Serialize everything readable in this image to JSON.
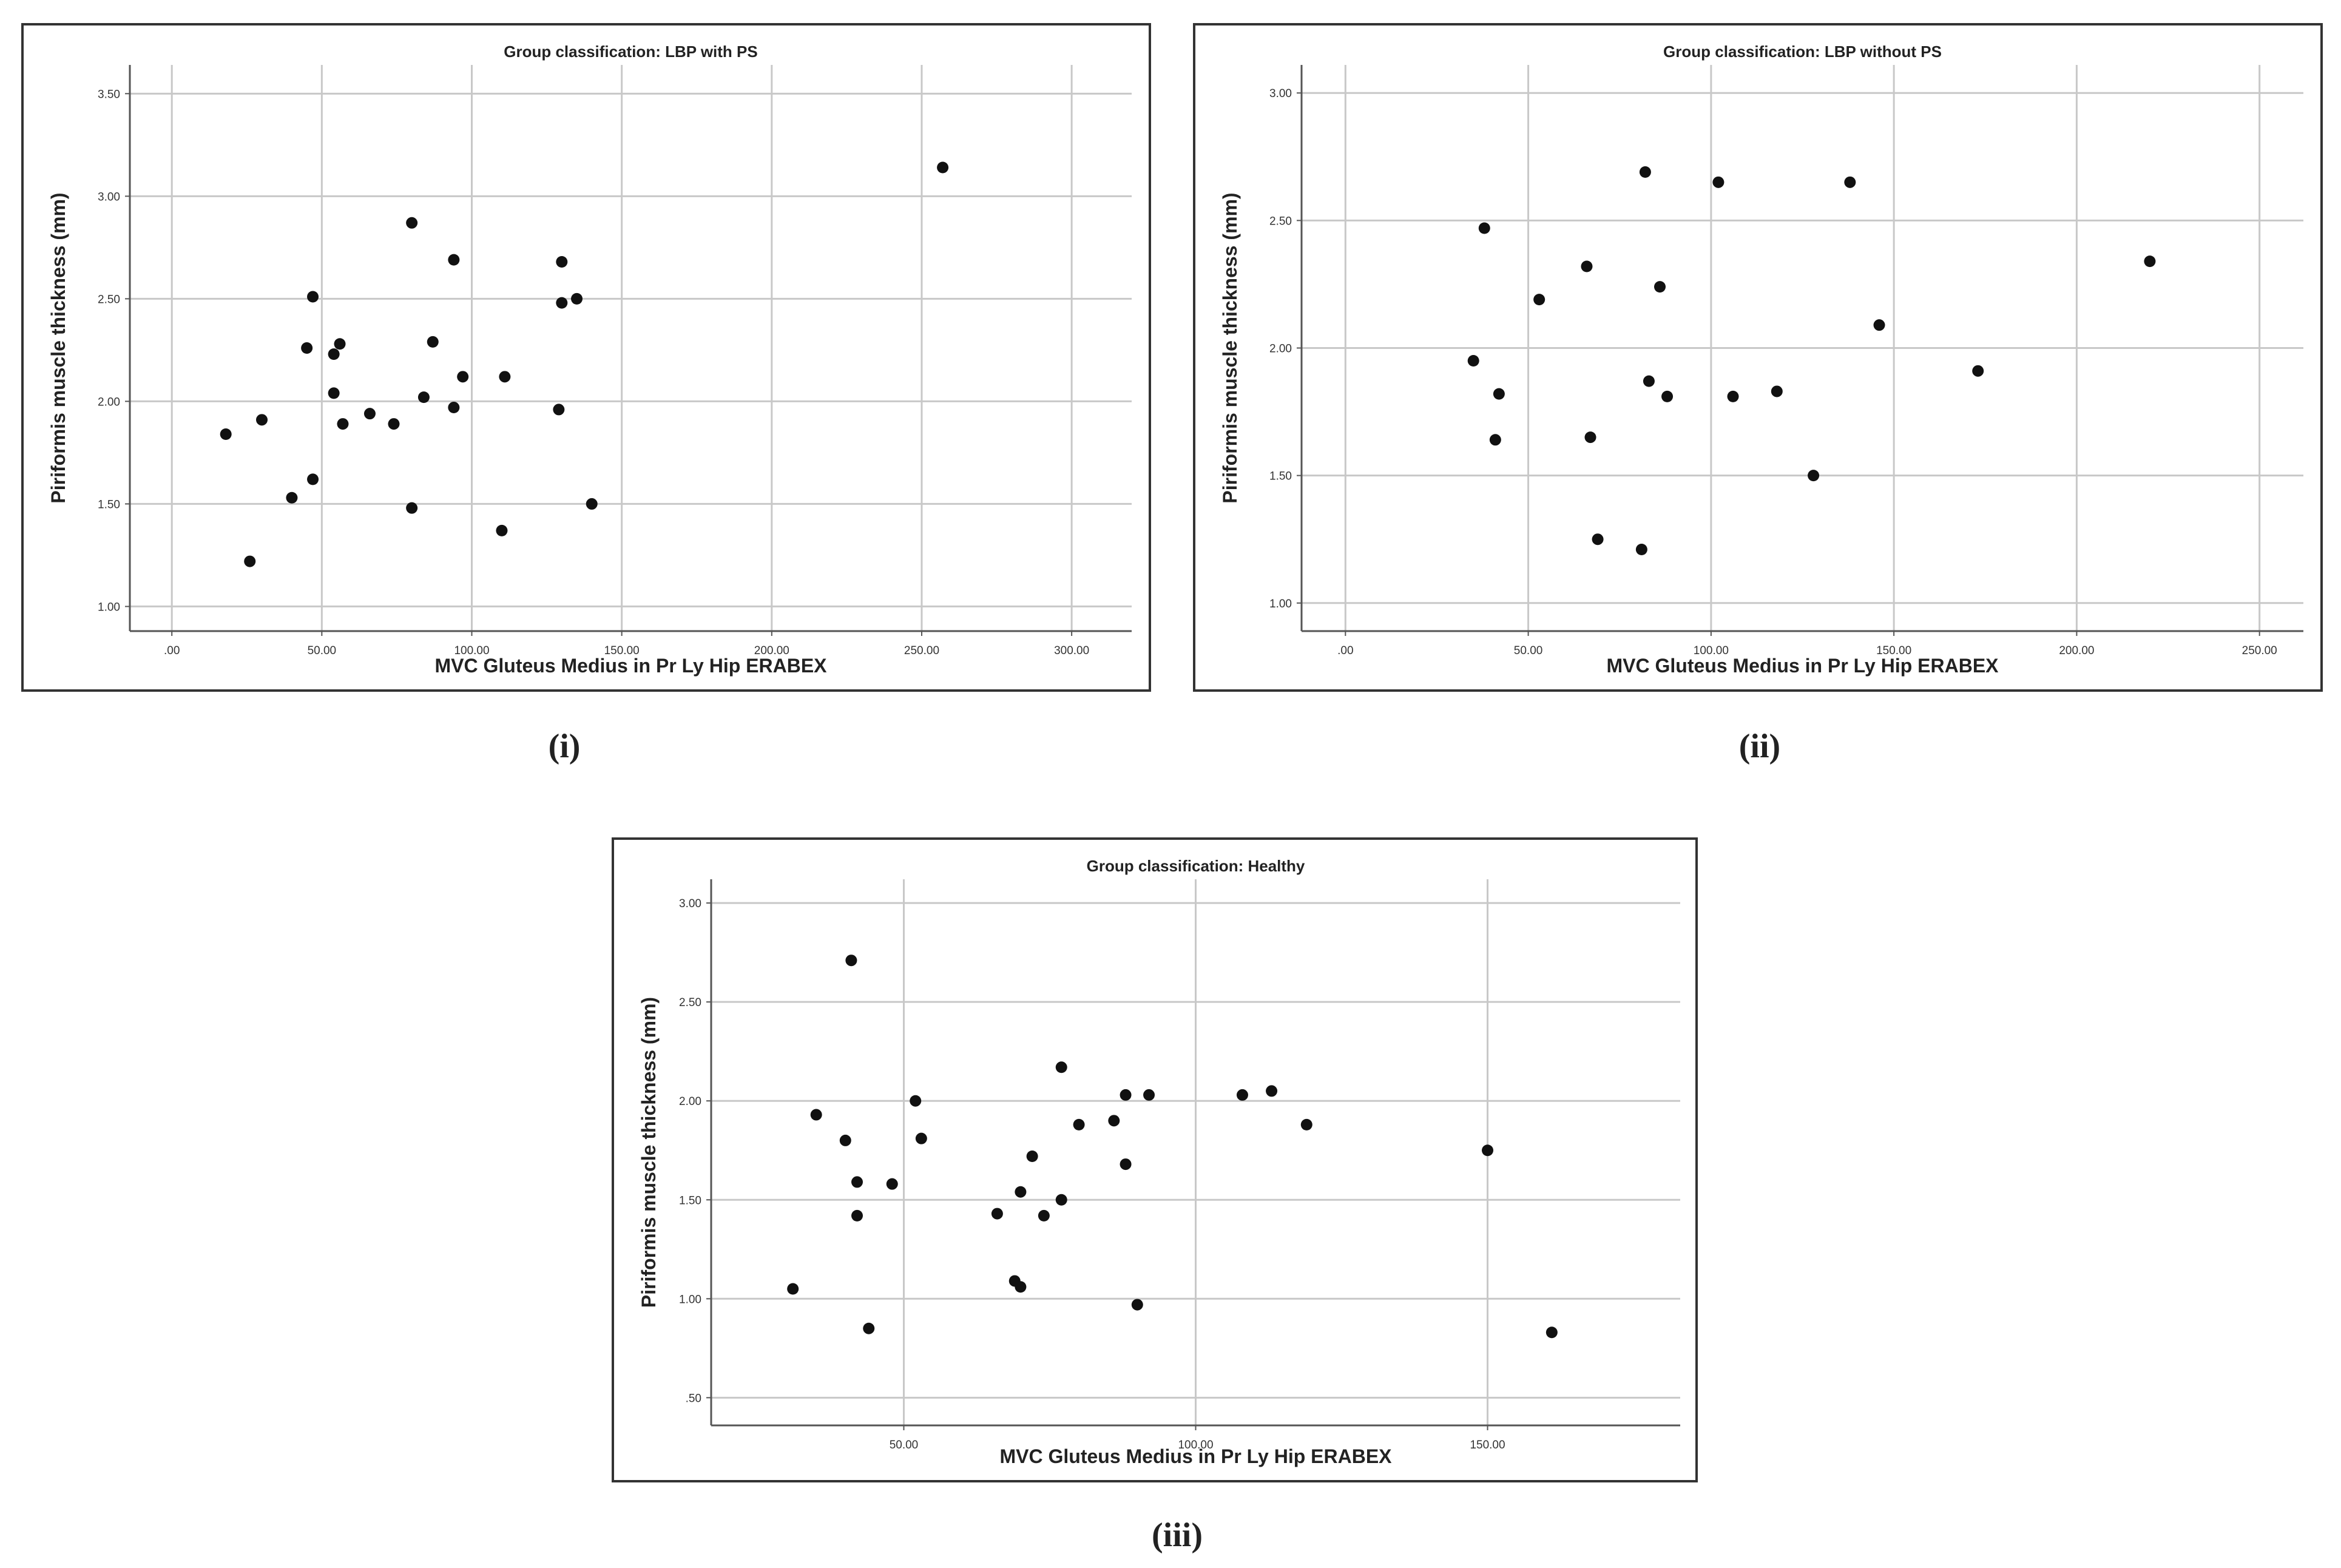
{
  "chart_data": [
    {
      "type": "scatter",
      "title": "Group classification: LBP with PS",
      "xlabel": "MVC Gluteus Medius in Pr Ly Hip ERABEX",
      "ylabel": "Piriformis muscle thickness (mm)",
      "xlim": [
        -14,
        320
      ],
      "ylim": [
        0.88,
        3.64
      ],
      "xticks": [
        0,
        50,
        100,
        150,
        200,
        250,
        300
      ],
      "xtick_labels": [
        ".00",
        "50.00",
        "100.00",
        "150.00",
        "200.00",
        "250.00",
        "300.00"
      ],
      "yticks": [
        1.0,
        1.5,
        2.0,
        2.5,
        3.0,
        3.5
      ],
      "ytick_labels": [
        "1.00",
        "1.50",
        "2.00",
        "2.50",
        "3.00",
        "3.50"
      ],
      "grid": true,
      "caption": "(i)",
      "points": [
        {
          "x": 18,
          "y": 1.84
        },
        {
          "x": 26,
          "y": 1.22
        },
        {
          "x": 30,
          "y": 1.91
        },
        {
          "x": 40,
          "y": 1.53
        },
        {
          "x": 45,
          "y": 2.26
        },
        {
          "x": 47,
          "y": 1.62
        },
        {
          "x": 47,
          "y": 2.51
        },
        {
          "x": 54,
          "y": 2.04
        },
        {
          "x": 54,
          "y": 2.23
        },
        {
          "x": 56,
          "y": 2.28
        },
        {
          "x": 57,
          "y": 1.89
        },
        {
          "x": 66,
          "y": 1.94
        },
        {
          "x": 74,
          "y": 1.89
        },
        {
          "x": 80,
          "y": 1.48
        },
        {
          "x": 80,
          "y": 2.87
        },
        {
          "x": 84,
          "y": 2.02
        },
        {
          "x": 87,
          "y": 2.29
        },
        {
          "x": 94,
          "y": 2.69
        },
        {
          "x": 94,
          "y": 1.97
        },
        {
          "x": 97,
          "y": 2.12
        },
        {
          "x": 110,
          "y": 1.37
        },
        {
          "x": 111,
          "y": 2.12
        },
        {
          "x": 129,
          "y": 1.96
        },
        {
          "x": 130,
          "y": 2.68
        },
        {
          "x": 130,
          "y": 2.48
        },
        {
          "x": 135,
          "y": 2.5
        },
        {
          "x": 140,
          "y": 1.5
        },
        {
          "x": 257,
          "y": 3.14
        }
      ]
    },
    {
      "type": "scatter",
      "title": "Group classification: LBP without PS",
      "xlabel": "MVC Gluteus Medius in Pr Ly Hip ERABEX",
      "ylabel": "Piriformis muscle thickness (mm)",
      "xlim": [
        -12,
        262
      ],
      "ylim": [
        0.89,
        3.11
      ],
      "xticks": [
        0,
        50,
        100,
        150,
        200,
        250
      ],
      "xtick_labels": [
        ".00",
        "50.00",
        "100.00",
        "150.00",
        "200.00",
        "250.00"
      ],
      "yticks": [
        1.0,
        1.5,
        2.0,
        2.5,
        3.0
      ],
      "ytick_labels": [
        "1.00",
        "1.50",
        "2.00",
        "2.50",
        "3.00"
      ],
      "grid": true,
      "caption": "(ii)",
      "points": [
        {
          "x": 35,
          "y": 1.95
        },
        {
          "x": 38,
          "y": 2.47
        },
        {
          "x": 41,
          "y": 1.64
        },
        {
          "x": 42,
          "y": 1.82
        },
        {
          "x": 53,
          "y": 2.19
        },
        {
          "x": 66,
          "y": 2.32
        },
        {
          "x": 67,
          "y": 1.65
        },
        {
          "x": 69,
          "y": 1.25
        },
        {
          "x": 81,
          "y": 1.21
        },
        {
          "x": 82,
          "y": 2.69
        },
        {
          "x": 83,
          "y": 1.87
        },
        {
          "x": 86,
          "y": 2.24
        },
        {
          "x": 88,
          "y": 1.81
        },
        {
          "x": 102,
          "y": 2.65
        },
        {
          "x": 106,
          "y": 1.81
        },
        {
          "x": 118,
          "y": 1.83
        },
        {
          "x": 128,
          "y": 1.5
        },
        {
          "x": 138,
          "y": 2.65
        },
        {
          "x": 146,
          "y": 2.09
        },
        {
          "x": 173,
          "y": 1.91
        },
        {
          "x": 220,
          "y": 2.34
        }
      ]
    },
    {
      "type": "scatter",
      "title": "Group classification: Healthy",
      "xlabel": "MVC Gluteus Medius in Pr Ly Hip ERABEX",
      "ylabel": "Piriformis muscle thickness (mm)",
      "xlim": [
        17,
        183
      ],
      "ylim": [
        0.36,
        3.12
      ],
      "xticks": [
        50,
        100,
        150
      ],
      "xtick_labels": [
        "50.00",
        "100.00",
        "150.00"
      ],
      "yticks": [
        0.5,
        1.0,
        1.5,
        2.0,
        2.5,
        3.0
      ],
      "ytick_labels": [
        ".50",
        "1.00",
        "1.50",
        "2.00",
        "2.50",
        "3.00"
      ],
      "grid": true,
      "caption": "(iii)",
      "points": [
        {
          "x": 31,
          "y": 1.05
        },
        {
          "x": 35,
          "y": 1.93
        },
        {
          "x": 40,
          "y": 1.8
        },
        {
          "x": 41,
          "y": 2.71
        },
        {
          "x": 42,
          "y": 1.59
        },
        {
          "x": 42,
          "y": 1.42
        },
        {
          "x": 44,
          "y": 0.85
        },
        {
          "x": 48,
          "y": 1.58
        },
        {
          "x": 52,
          "y": 2.0
        },
        {
          "x": 53,
          "y": 1.81
        },
        {
          "x": 66,
          "y": 1.43
        },
        {
          "x": 69,
          "y": 1.09
        },
        {
          "x": 70,
          "y": 1.54
        },
        {
          "x": 70,
          "y": 1.06
        },
        {
          "x": 72,
          "y": 1.72
        },
        {
          "x": 74,
          "y": 1.42
        },
        {
          "x": 77,
          "y": 2.17
        },
        {
          "x": 77,
          "y": 1.5
        },
        {
          "x": 80,
          "y": 1.88
        },
        {
          "x": 86,
          "y": 1.9
        },
        {
          "x": 88,
          "y": 2.03
        },
        {
          "x": 88,
          "y": 1.68
        },
        {
          "x": 90,
          "y": 0.97
        },
        {
          "x": 92,
          "y": 2.03
        },
        {
          "x": 108,
          "y": 2.03
        },
        {
          "x": 113,
          "y": 2.05
        },
        {
          "x": 119,
          "y": 1.88
        },
        {
          "x": 150,
          "y": 1.75
        },
        {
          "x": 161,
          "y": 0.83
        }
      ]
    }
  ]
}
